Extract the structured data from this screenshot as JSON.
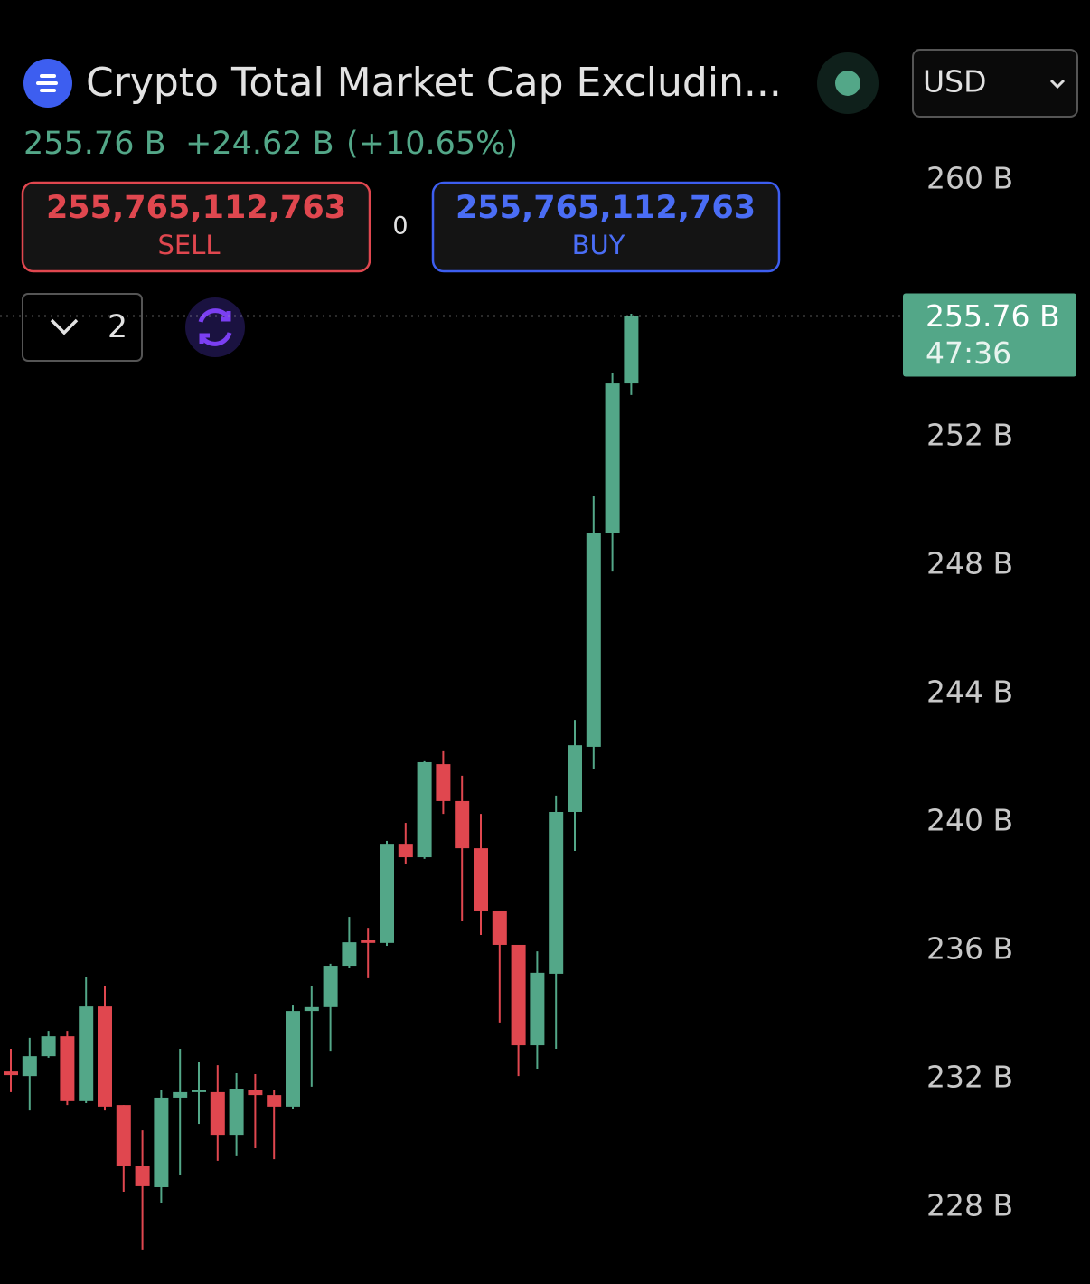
{
  "header": {
    "title": "Crypto Total Market Cap Excludin...",
    "price": "255.76 B",
    "change": "+24.62 B",
    "change_pct": "(+10.65%)",
    "currency": "USD",
    "sell_price": "255,765,112,763",
    "sell_label": "SELL",
    "spread": "0",
    "buy_price": "255,765,112,763",
    "buy_label": "BUY",
    "indicator_count": "2"
  },
  "chart_data": {
    "type": "candlestick",
    "up_color": "#53a788",
    "down_color": "#e0474f",
    "open": [
      232.25,
      232.08,
      232.7,
      233.32,
      231.3,
      234.25,
      231.18,
      229.27,
      228.62,
      231.41,
      231.58,
      231.58,
      230.25,
      231.66,
      231.49,
      231.13,
      234.11,
      234.23,
      235.52,
      236.31,
      236.23,
      239.32,
      238.9,
      241.8,
      240.65,
      239.18,
      237.24,
      236.17,
      233.04,
      235.27,
      240.31,
      242.34,
      248.99,
      253.66
    ],
    "high": [
      232.93,
      233.27,
      233.49,
      233.49,
      235.18,
      234.9,
      231.18,
      230.39,
      231.66,
      232.93,
      232.51,
      232.42,
      232.17,
      232.14,
      231.66,
      234.28,
      234.9,
      235.58,
      237.04,
      236.7,
      239.41,
      239.97,
      241.89,
      242.23,
      241.44,
      240.25,
      237.24,
      236.17,
      235.97,
      240.82,
      243.18,
      250.17,
      254.0,
      255.83
    ],
    "low": [
      231.58,
      231.01,
      232.65,
      231.18,
      231.24,
      231.01,
      228.48,
      226.68,
      228.14,
      228.99,
      230.59,
      229.44,
      229.61,
      229.83,
      229.49,
      231.07,
      231.75,
      232.87,
      235.46,
      235.13,
      236.14,
      238.7,
      238.85,
      240.25,
      236.93,
      236.48,
      233.75,
      232.08,
      232.31,
      232.93,
      239.1,
      241.66,
      247.8,
      253.3
    ],
    "close": [
      232.11,
      232.7,
      233.32,
      231.3,
      234.25,
      231.13,
      229.27,
      228.65,
      231.41,
      231.58,
      231.66,
      230.25,
      231.69,
      231.49,
      231.13,
      234.11,
      234.23,
      235.52,
      236.25,
      236.23,
      239.32,
      238.9,
      241.86,
      240.65,
      239.18,
      237.24,
      236.17,
      233.04,
      235.3,
      240.31,
      242.39,
      248.99,
      253.66,
      255.76
    ],
    "ylim": [
      226,
      262
    ],
    "yticks": [
      {
        "value": 260,
        "label": "260 B"
      },
      {
        "value": 252,
        "label": "252 B"
      },
      {
        "value": 248,
        "label": "248 B"
      },
      {
        "value": 244,
        "label": "244 B"
      },
      {
        "value": 240,
        "label": "240 B"
      },
      {
        "value": 236,
        "label": "236 B"
      },
      {
        "value": 232,
        "label": "232 B"
      },
      {
        "value": 228,
        "label": "228 B"
      }
    ],
    "last_price": {
      "value": 255.76,
      "label": "255.76 B"
    },
    "countdown": "47:36"
  }
}
